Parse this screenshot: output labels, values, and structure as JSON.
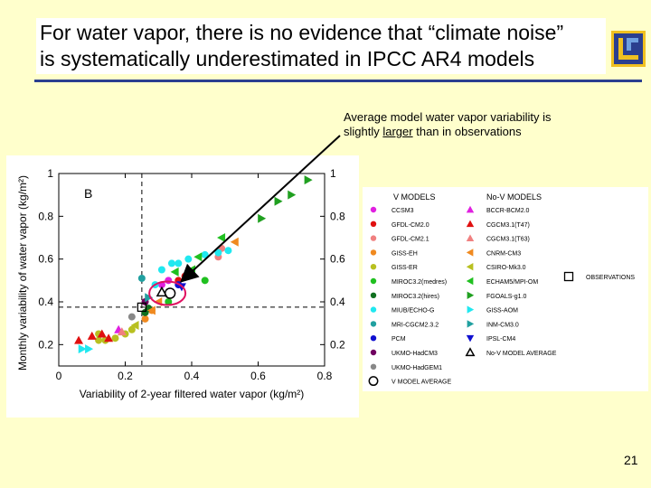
{
  "slide": {
    "title_line1": "For water vapor, there is no evidence that “climate noise”",
    "title_line2": "is systematically underestimated in IPCC AR4 models",
    "page_number": "21",
    "accent_color": "#2b3f8f",
    "background_color": "#ffffcc"
  },
  "callout": {
    "line1": "Average model water vapor variability is",
    "line2_pre": "slightly ",
    "line2_underlined": "larger",
    "line2_post": " than in observations"
  },
  "chart_data": {
    "type": "scatter",
    "panel_label": "B",
    "xlabel": "Variability of 2-year filtered water vapor (kg/m²)",
    "ylabel": "Monthly variability of water vapor (kg/m²)",
    "xlim": [
      0,
      0.8
    ],
    "ylim": [
      0.1,
      1.0
    ],
    "x_ticks": [
      0,
      0.2,
      0.4,
      0.6,
      0.8
    ],
    "x_tick_labels": [
      "0",
      "0.2",
      "0.4",
      "0.6",
      "0.8"
    ],
    "y_ticks": [
      0.2,
      0.4,
      0.6,
      0.8,
      1.0
    ],
    "y_tick_labels": [
      "0.2",
      "0.4",
      "0.6",
      "0.8",
      "1"
    ],
    "observation_reference": {
      "x": 0.25,
      "y": 0.375
    },
    "series": [
      {
        "name": "CCSM3",
        "group": "V",
        "marker": "circle",
        "color": "#e020e0",
        "points": [
          [
            0.31,
            0.48
          ],
          [
            0.33,
            0.5
          ]
        ]
      },
      {
        "name": "GFDL-CM2.0",
        "group": "V",
        "marker": "circle",
        "color": "#e01010",
        "points": [
          [
            0.36,
            0.5
          ],
          [
            0.38,
            0.52
          ]
        ]
      },
      {
        "name": "GFDL-CM2.1",
        "group": "V",
        "marker": "circle",
        "color": "#f08080",
        "points": [
          [
            0.49,
            0.65
          ],
          [
            0.48,
            0.61
          ]
        ]
      },
      {
        "name": "GISS-EH",
        "group": "V",
        "marker": "circle",
        "color": "#f08a20",
        "points": [
          [
            0.26,
            0.32
          ],
          [
            0.28,
            0.36
          ]
        ]
      },
      {
        "name": "GISS-ER",
        "group": "V",
        "marker": "circle",
        "color": "#b8c020",
        "points": [
          [
            0.12,
            0.25
          ],
          [
            0.14,
            0.22
          ],
          [
            0.17,
            0.23
          ],
          [
            0.2,
            0.25
          ],
          [
            0.22,
            0.27
          ],
          [
            0.12,
            0.22
          ]
        ]
      },
      {
        "name": "MIROC3.2(medres)",
        "group": "V",
        "marker": "circle",
        "color": "#20c020",
        "points": [
          [
            0.44,
            0.5
          ],
          [
            0.33,
            0.4
          ]
        ]
      },
      {
        "name": "MIROC3.2(hires)",
        "group": "V",
        "marker": "circle",
        "color": "#107020",
        "points": [
          [
            0.26,
            0.35
          ],
          [
            0.27,
            0.37
          ]
        ]
      },
      {
        "name": "MIUB/ECHO-G",
        "group": "V",
        "marker": "circle",
        "color": "#20e8f0",
        "points": [
          [
            0.31,
            0.55
          ],
          [
            0.34,
            0.58
          ],
          [
            0.39,
            0.6
          ],
          [
            0.44,
            0.62
          ],
          [
            0.48,
            0.63
          ],
          [
            0.51,
            0.64
          ],
          [
            0.36,
            0.58
          ],
          [
            0.29,
            0.48
          ]
        ]
      },
      {
        "name": "MRI-CGCM2.3.2",
        "group": "V",
        "marker": "circle",
        "color": "#20a0a0",
        "points": [
          [
            0.25,
            0.51
          ]
        ]
      },
      {
        "name": "PCM",
        "group": "V",
        "marker": "circle",
        "color": "#1010d0",
        "points": [
          [
            0.36,
            0.48
          ]
        ]
      },
      {
        "name": "UKMO-HadCM3",
        "group": "V",
        "marker": "circle",
        "color": "#700060",
        "points": [
          [
            0.26,
            0.4
          ]
        ]
      },
      {
        "name": "UKMO-HadGEM1",
        "group": "V",
        "marker": "circle",
        "color": "#888888",
        "points": [
          [
            0.22,
            0.33
          ]
        ]
      },
      {
        "name": "V MODEL AVERAGE",
        "group": "V",
        "marker": "open-circle",
        "color": "#000000",
        "points": [
          [
            0.335,
            0.44
          ]
        ]
      },
      {
        "name": "BCCR-BCM2.0",
        "group": "No-V",
        "marker": "triangle-up",
        "color": "#e020e0",
        "points": [
          [
            0.18,
            0.27
          ]
        ]
      },
      {
        "name": "CGCM3.1(T47)",
        "group": "No-V",
        "marker": "triangle-up",
        "color": "#e01010",
        "points": [
          [
            0.06,
            0.22
          ],
          [
            0.1,
            0.24
          ],
          [
            0.13,
            0.25
          ],
          [
            0.15,
            0.23
          ]
        ]
      },
      {
        "name": "CGCM3.1(T63)",
        "group": "No-V",
        "marker": "triangle-up",
        "color": "#f08080",
        "points": [
          [
            0.19,
            0.26
          ]
        ]
      },
      {
        "name": "CNRM-CM3",
        "group": "No-V",
        "marker": "triangle-left",
        "color": "#f08a20",
        "points": [
          [
            0.53,
            0.68
          ],
          [
            0.28,
            0.36
          ],
          [
            0.3,
            0.4
          ],
          [
            0.4,
            0.55
          ]
        ]
      },
      {
        "name": "CSIRO-Mk3.0",
        "group": "No-V",
        "marker": "triangle-left",
        "color": "#b8c020",
        "points": [
          [
            0.23,
            0.29
          ]
        ]
      },
      {
        "name": "ECHAM5/MPI-OM",
        "group": "No-V",
        "marker": "triangle-left",
        "color": "#20c020",
        "points": [
          [
            0.4,
            0.55
          ],
          [
            0.49,
            0.7
          ],
          [
            0.35,
            0.54
          ],
          [
            0.42,
            0.61
          ]
        ]
      },
      {
        "name": "FGOALS-g1.0",
        "group": "No-V",
        "marker": "triangle-right",
        "color": "#20a020",
        "points": [
          [
            0.61,
            0.79
          ],
          [
            0.7,
            0.9
          ],
          [
            0.75,
            0.97
          ],
          [
            0.66,
            0.87
          ]
        ]
      },
      {
        "name": "GISS-AOM",
        "group": "No-V",
        "marker": "triangle-right",
        "color": "#20e8f0",
        "points": [
          [
            0.07,
            0.18
          ],
          [
            0.09,
            0.18
          ]
        ]
      },
      {
        "name": "INM-CM3.0",
        "group": "No-V",
        "marker": "triangle-right",
        "color": "#20a0a0",
        "points": [
          [
            0.27,
            0.42
          ]
        ]
      },
      {
        "name": "IPSL-CM4",
        "group": "No-V",
        "marker": "triangle-down",
        "color": "#1010d0",
        "points": [
          [
            0.37,
            0.47
          ]
        ]
      },
      {
        "name": "No-V MODEL AVERAGE",
        "group": "No-V",
        "marker": "open-triangle",
        "color": "#000000",
        "points": [
          [
            0.31,
            0.445
          ]
        ]
      },
      {
        "name": "OBSERVATIONS",
        "group": "obs",
        "marker": "open-square",
        "color": "#000000",
        "points": [
          [
            0.25,
            0.375
          ]
        ]
      }
    ]
  },
  "legend": {
    "v_header": "V MODELS",
    "nov_header": "No-V MODELS",
    "v_items": [
      {
        "label": "CCSM3",
        "marker": "circle",
        "color": "#e020e0"
      },
      {
        "label": "GFDL-CM2.0",
        "marker": "circle",
        "color": "#e01010"
      },
      {
        "label": "GFDL-CM2.1",
        "marker": "circle",
        "color": "#f08080"
      },
      {
        "label": "GISS-EH",
        "marker": "circle",
        "color": "#f08a20"
      },
      {
        "label": "GISS-ER",
        "marker": "circle",
        "color": "#b8c020"
      },
      {
        "label": "MIROC3.2(medres)",
        "marker": "circle",
        "color": "#20c020"
      },
      {
        "label": "MIROC3.2(hires)",
        "marker": "circle",
        "color": "#107020"
      },
      {
        "label": "MIUB/ECHO-G",
        "marker": "circle",
        "color": "#20e8f0"
      },
      {
        "label": "MRI-CGCM2.3.2",
        "marker": "circle",
        "color": "#20a0a0"
      },
      {
        "label": "PCM",
        "marker": "circle",
        "color": "#1010d0"
      },
      {
        "label": "UKMO-HadCM3",
        "marker": "circle",
        "color": "#700060"
      },
      {
        "label": "UKMO-HadGEM1",
        "marker": "circle",
        "color": "#888888"
      },
      {
        "label": "V MODEL AVERAGE",
        "marker": "open-circle",
        "color": "#000000"
      }
    ],
    "nov_items": [
      {
        "label": "BCCR-BCM2.0",
        "marker": "triangle-up",
        "color": "#e020e0"
      },
      {
        "label": "CGCM3.1(T47)",
        "marker": "triangle-up",
        "color": "#e01010"
      },
      {
        "label": "CGCM3.1(T63)",
        "marker": "triangle-up",
        "color": "#f08080"
      },
      {
        "label": "CNRM-CM3",
        "marker": "triangle-left",
        "color": "#f08a20"
      },
      {
        "label": "CSIRO-Mk3.0",
        "marker": "triangle-left",
        "color": "#b8c020"
      },
      {
        "label": "ECHAM5/MPI-OM",
        "marker": "triangle-left",
        "color": "#20c020"
      },
      {
        "label": "FGOALS-g1.0",
        "marker": "triangle-right",
        "color": "#20a020"
      },
      {
        "label": "GISS-AOM",
        "marker": "triangle-right",
        "color": "#20e8f0"
      },
      {
        "label": "INM-CM3.0",
        "marker": "triangle-right",
        "color": "#20a0a0"
      },
      {
        "label": "IPSL-CM4",
        "marker": "triangle-down",
        "color": "#1010d0"
      },
      {
        "label": "No-V MODEL AVERAGE",
        "marker": "open-triangle",
        "color": "#000000"
      }
    ],
    "obs_item": {
      "label": "OBSERVATIONS",
      "marker": "open-square",
      "color": "#000000"
    }
  }
}
